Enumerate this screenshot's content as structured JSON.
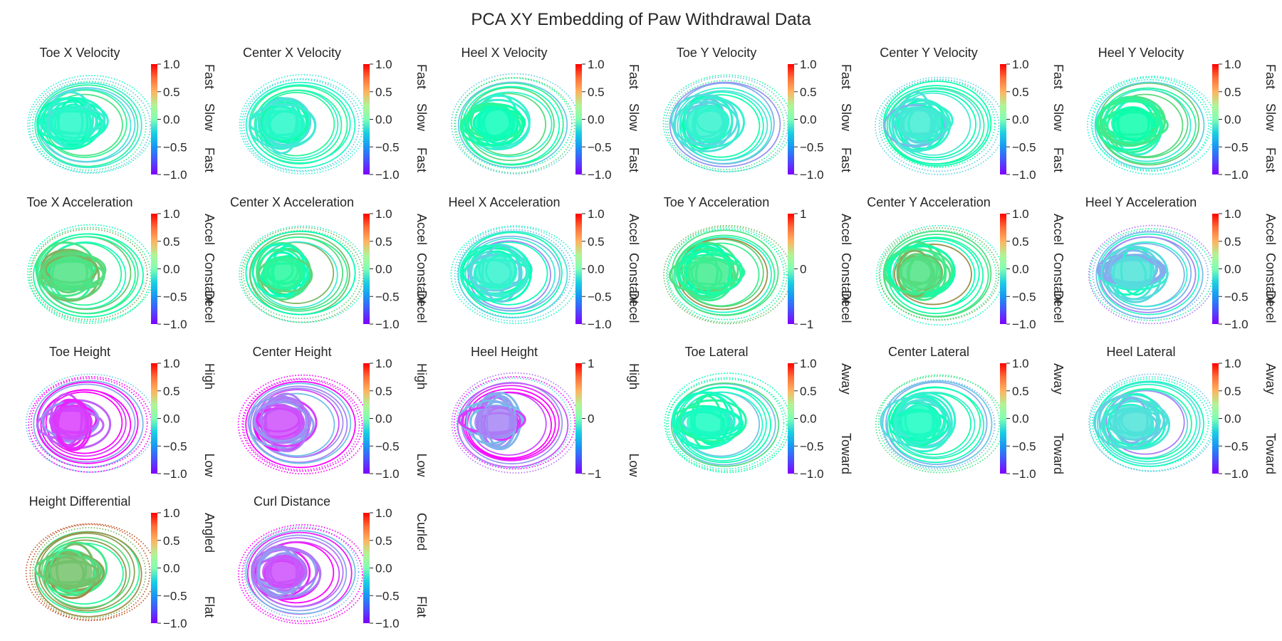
{
  "chart_data": {
    "type": "scatter",
    "title": "PCA XY Embedding of Paw Withdrawal Data",
    "colormap": "rainbow",
    "colorbar_range": [
      -1,
      1
    ],
    "panels": [
      {
        "title": "Toe X Velocity",
        "ticks": [
          "1.0",
          "0.5",
          "0.0",
          "−0.5",
          "−1.0"
        ],
        "cbar_labels": {
          "top": "Fast",
          "mid": "Slow",
          "bottom": "Fast"
        },
        "overall_color_value": -0.15
      },
      {
        "title": "Center X Velocity",
        "ticks": [
          "1.0",
          "0.5",
          "0.0",
          "−0.5",
          "−1.0"
        ],
        "cbar_labels": {
          "top": "Fast",
          "mid": "Slow",
          "bottom": "Fast"
        },
        "overall_color_value": -0.15
      },
      {
        "title": "Heel X Velocity",
        "ticks": [
          "1.0",
          "0.5",
          "0.0",
          "−0.5",
          "−1.0"
        ],
        "cbar_labels": {
          "top": "Fast",
          "mid": "Slow",
          "bottom": "Fast"
        },
        "overall_color_value": -0.05
      },
      {
        "title": "Toe Y Velocity",
        "ticks": [
          "1.0",
          "0.5",
          "0.0",
          "−0.5",
          "−1.0"
        ],
        "cbar_labels": {
          "top": "Fast",
          "mid": "Slow",
          "bottom": "Fast"
        },
        "overall_color_value": -0.2
      },
      {
        "title": "Center Y Velocity",
        "ticks": [
          "1.0",
          "0.5",
          "0.0",
          "−0.5",
          "−1.0"
        ],
        "cbar_labels": {
          "top": "Fast",
          "mid": "Slow",
          "bottom": "Fast"
        },
        "overall_color_value": -0.25
      },
      {
        "title": "Heel Y Velocity",
        "ticks": [
          "1.0",
          "0.5",
          "0.0",
          "−0.5",
          "−1.0"
        ],
        "cbar_labels": {
          "top": "Fast",
          "mid": "Slow",
          "bottom": "Fast"
        },
        "overall_color_value": 0.05
      },
      {
        "title": "Toe X Acceleration",
        "ticks": [
          "1.0",
          "0.5",
          "0.0",
          "−0.5",
          "−1.0"
        ],
        "cbar_labels": {
          "top": "Accel",
          "mid": "Constant",
          "bottom": "Decel"
        },
        "overall_color_value": 0.3
      },
      {
        "title": "Center X Acceleration",
        "ticks": [
          "1.0",
          "0.5",
          "0.0",
          "−0.5",
          "−1.0"
        ],
        "cbar_labels": {
          "top": "Accel",
          "mid": "Constant",
          "bottom": "Decel"
        },
        "overall_color_value": 0.15
      },
      {
        "title": "Heel X Acceleration",
        "ticks": [
          "1.0",
          "0.5",
          "0.0",
          "−0.5",
          "−1.0"
        ],
        "cbar_labels": {
          "top": "Accel",
          "mid": "Constant",
          "bottom": "Decel"
        },
        "overall_color_value": -0.2
      },
      {
        "title": "Toe Y Acceleration",
        "ticks": [
          "1",
          "0",
          "−1"
        ],
        "cbar_labels": {
          "top": "Accel",
          "mid": "Constant",
          "bottom": "Decel"
        },
        "overall_color_value": 0.25
      },
      {
        "title": "Center Y Acceleration",
        "ticks": [
          "1.0",
          "0.5",
          "0.0",
          "−0.5",
          "−1.0"
        ],
        "cbar_labels": {
          "top": "Accel",
          "mid": "Constant",
          "bottom": "Decel"
        },
        "overall_color_value": 0.3
      },
      {
        "title": "Heel Y Acceleration",
        "ticks": [
          "1.0",
          "0.5",
          "0.0",
          "−0.5",
          "−1.0"
        ],
        "cbar_labels": {
          "top": "Accel",
          "mid": "Constant",
          "bottom": "Decel"
        },
        "overall_color_value": -0.3
      },
      {
        "title": "Toe Height",
        "ticks": [
          "1.0",
          "0.5",
          "0.0",
          "−0.5",
          "−1.0"
        ],
        "cbar_labels": {
          "top": "High",
          "mid": "",
          "bottom": "Low"
        },
        "overall_color_value": -0.85
      },
      {
        "title": "Center Height",
        "ticks": [
          "1.0",
          "0.5",
          "0.0",
          "−0.5",
          "−1.0"
        ],
        "cbar_labels": {
          "top": "High",
          "mid": "",
          "bottom": "Low"
        },
        "overall_color_value": -0.8
      },
      {
        "title": "Heel Height",
        "ticks": [
          "1",
          "0",
          "−1"
        ],
        "cbar_labels": {
          "top": "High",
          "mid": "",
          "bottom": "Low"
        },
        "overall_color_value": -0.65
      },
      {
        "title": "Toe Lateral",
        "ticks": [
          "1.0",
          "0.5",
          "0.0",
          "−0.5",
          "−1.0"
        ],
        "cbar_labels": {
          "top": "Away",
          "mid": "",
          "bottom": "Toward"
        },
        "overall_color_value": -0.1
      },
      {
        "title": "Center Lateral",
        "ticks": [
          "1.0",
          "0.5",
          "0.0",
          "−0.5",
          "−1.0"
        ],
        "cbar_labels": {
          "top": "Away",
          "mid": "",
          "bottom": "Toward"
        },
        "overall_color_value": -0.1
      },
      {
        "title": "Heel Lateral",
        "ticks": [
          "1.0",
          "0.5",
          "0.0",
          "−0.5",
          "−1.0"
        ],
        "cbar_labels": {
          "top": "Away",
          "mid": "",
          "bottom": "Toward"
        },
        "overall_color_value": -0.3
      },
      {
        "title": "Height Differential",
        "ticks": [
          "1.0",
          "0.5",
          "0.0",
          "−0.5",
          "−1.0"
        ],
        "cbar_labels": {
          "top": "Angled",
          "mid": "",
          "bottom": "Flat"
        },
        "overall_color_value": 0.45
      },
      {
        "title": "Curl Distance",
        "ticks": [
          "1.0",
          "0.5",
          "0.0",
          "−0.5",
          "−1.0"
        ],
        "cbar_labels": {
          "top": "Curled",
          "mid": "",
          "bottom": "Flat"
        },
        "overall_color_value": -0.8
      }
    ]
  }
}
